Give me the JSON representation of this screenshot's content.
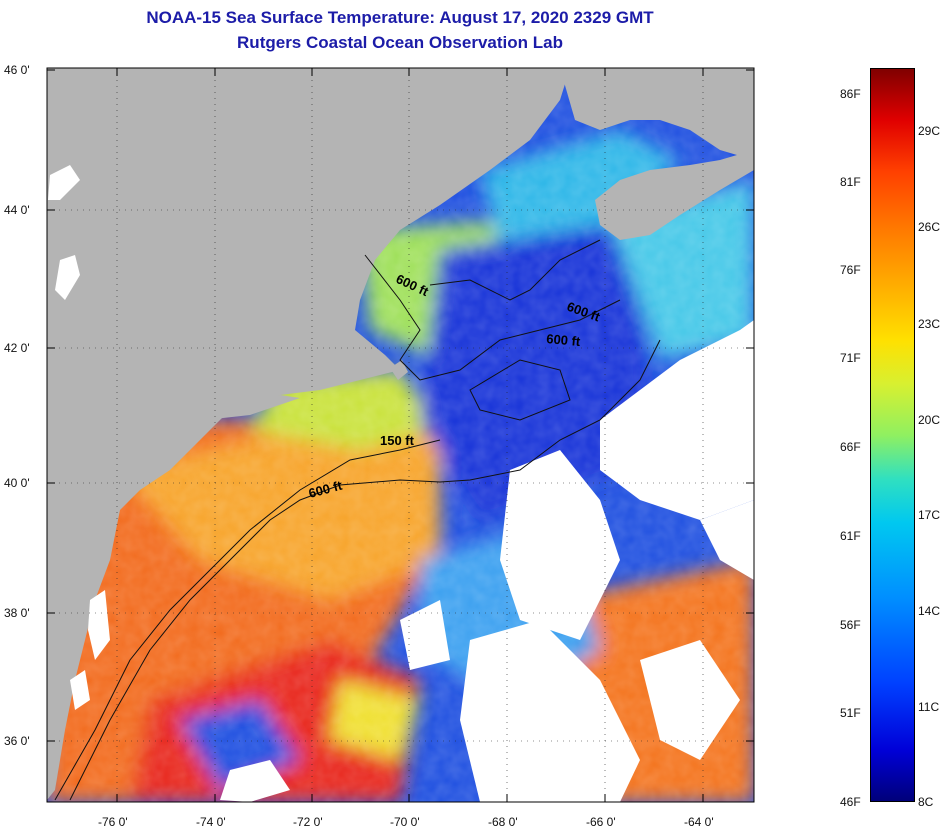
{
  "title_line1": "NOAA-15 Sea Surface Temperature:  August 17, 2020 2329 GMT",
  "title_line2": "Rutgers Coastal Ocean Observation Lab",
  "colors": {
    "title": "#1c1ca8",
    "land": "#b4b4b4",
    "cloud": "#ffffff"
  },
  "lat_labels": [
    "46 0'",
    "44 0'",
    "42 0'",
    "40 0'",
    "38 0'",
    "36 0'"
  ],
  "lon_labels": [
    "-76 0'",
    "-74 0'",
    "-72 0'",
    "-70 0'",
    "-68 0'",
    "-66 0'",
    "-64 0'"
  ],
  "contour_labels": [
    "600 ft",
    "600 ft",
    "600 ft",
    "150 ft",
    "600 ft"
  ],
  "colorbar": {
    "fahrenheit": [
      "86F",
      "81F",
      "76F",
      "71F",
      "66F",
      "61F",
      "56F",
      "51F",
      "46F"
    ],
    "celsius": [
      "29C",
      "26C",
      "23C",
      "20C",
      "17C",
      "14C",
      "11C",
      "8C"
    ]
  }
}
